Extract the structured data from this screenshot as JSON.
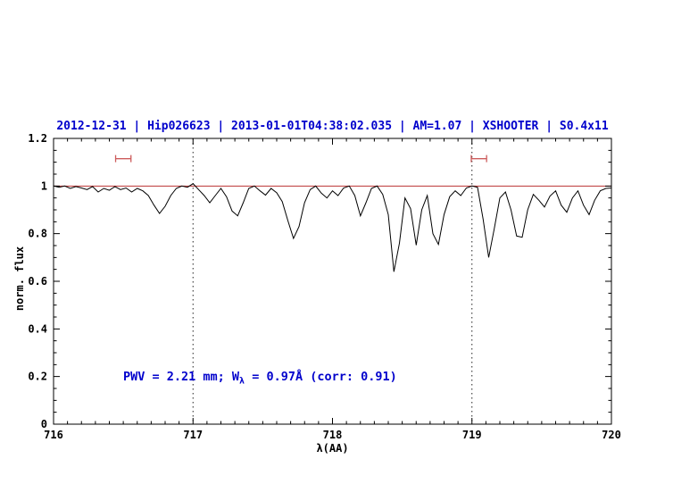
{
  "colors": {
    "title": "#0000cc",
    "annotation": "#0000cc",
    "spectrum": "#000000",
    "continuum": "#bb3333",
    "marker": "#cd5c5c",
    "frame": "#000000"
  },
  "annotation": {
    "pre": "PWV = 2.21 mm; W",
    "sub": "λ",
    "post": " = 0.97Å (corr: 0.91)"
  },
  "chart_data": {
    "type": "line",
    "title": "2012-12-31 | Hip026623 | 2013-01-01T04:38:02.035 | AM=1.07 | XSHOOTER | S0.4x11",
    "xlabel": "λ(AA)",
    "ylabel": "norm. flux",
    "xlim": [
      716,
      720
    ],
    "ylim": [
      0,
      1.2
    ],
    "xticks": [
      716,
      717,
      718,
      719,
      720
    ],
    "yticks": [
      0,
      0.2,
      0.4,
      0.6,
      0.8,
      1,
      1.2
    ],
    "x_minor": 0.1,
    "y_minor": 0.05,
    "grid": false,
    "legend": "none",
    "vlines": [
      717,
      719
    ],
    "continuum": {
      "y": 1.0
    },
    "range_markers": [
      {
        "x": 716.5,
        "half_width": 0.055,
        "y": 1.115
      },
      {
        "x": 719.05,
        "half_width": 0.055,
        "y": 1.115
      }
    ],
    "series": [
      {
        "name": "spectrum",
        "x": [
          716,
          716.04,
          716.08,
          716.12,
          716.16,
          716.2,
          716.24,
          716.28,
          716.32,
          716.36,
          716.4,
          716.44,
          716.48,
          716.52,
          716.56,
          716.6,
          716.64,
          716.68,
          716.72,
          716.76,
          716.8,
          716.84,
          716.88,
          716.92,
          716.96,
          717,
          717.04,
          717.08,
          717.12,
          717.16,
          717.2,
          717.24,
          717.28,
          717.32,
          717.36,
          717.4,
          717.44,
          717.48,
          717.52,
          717.56,
          717.6,
          717.64,
          717.68,
          717.72,
          717.76,
          717.8,
          717.84,
          717.88,
          717.92,
          717.96,
          718,
          718.04,
          718.08,
          718.12,
          718.16,
          718.2,
          718.24,
          718.28,
          718.32,
          718.36,
          718.4,
          718.44,
          718.48,
          718.52,
          718.56,
          718.6,
          718.64,
          718.68,
          718.72,
          718.76,
          718.8,
          718.84,
          718.88,
          718.92,
          718.96,
          719,
          719.04,
          719.08,
          719.12,
          719.16,
          719.2,
          719.24,
          719.28,
          719.32,
          719.36,
          719.4,
          719.44,
          719.48,
          719.52,
          719.56,
          719.6,
          719.64,
          719.68,
          719.72,
          719.76,
          719.8,
          719.84,
          719.88,
          719.92,
          719.96,
          720
        ],
        "y": [
          1.0,
          0.995,
          1.0,
          0.99,
          0.998,
          0.992,
          0.985,
          0.998,
          0.975,
          0.99,
          0.982,
          0.998,
          0.985,
          0.992,
          0.975,
          0.99,
          0.98,
          0.96,
          0.92,
          0.885,
          0.915,
          0.96,
          0.99,
          1.0,
          0.995,
          1.01,
          0.985,
          0.96,
          0.93,
          0.96,
          0.99,
          0.955,
          0.895,
          0.875,
          0.93,
          0.99,
          1.0,
          0.98,
          0.962,
          0.99,
          0.972,
          0.935,
          0.855,
          0.78,
          0.83,
          0.93,
          0.985,
          1.0,
          0.97,
          0.95,
          0.98,
          0.96,
          0.992,
          1.0,
          0.96,
          0.875,
          0.93,
          0.99,
          1.0,
          0.965,
          0.88,
          0.64,
          0.76,
          0.95,
          0.905,
          0.752,
          0.9,
          0.96,
          0.8,
          0.755,
          0.88,
          0.955,
          0.98,
          0.96,
          0.992,
          1.0,
          0.995,
          0.86,
          0.7,
          0.82,
          0.95,
          0.975,
          0.9,
          0.79,
          0.785,
          0.9,
          0.965,
          0.94,
          0.912,
          0.958,
          0.98,
          0.92,
          0.89,
          0.95,
          0.98,
          0.92,
          0.88,
          0.94,
          0.98,
          0.99,
          0.992
        ]
      }
    ]
  }
}
